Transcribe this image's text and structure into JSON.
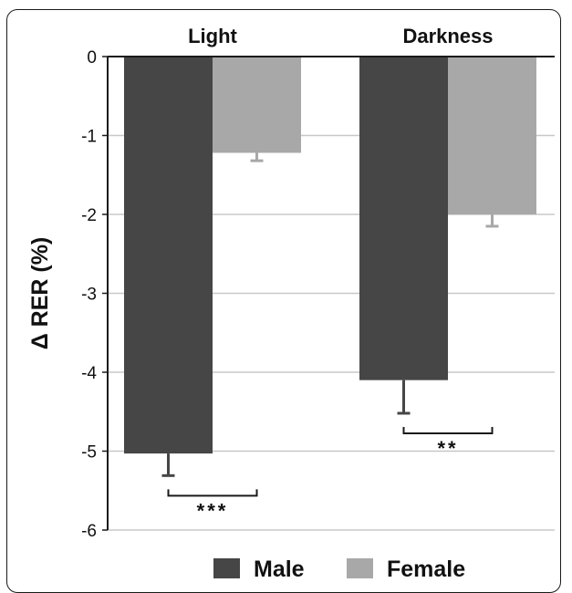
{
  "chart_data": {
    "type": "bar",
    "categories": [
      "Light",
      "Darkness"
    ],
    "series": [
      {
        "name": "Male",
        "values": [
          -5.03,
          -4.1
        ],
        "errors": [
          0.28,
          0.42
        ],
        "color": "#464646"
      },
      {
        "name": "Female",
        "values": [
          -1.22,
          -2.0
        ],
        "errors": [
          0.1,
          0.15
        ],
        "color": "#a8a8a8"
      }
    ],
    "ylabel": "Δ RER (%)",
    "ylim": [
      -6,
      0
    ],
    "yticks": [
      0,
      -1,
      -2,
      -3,
      -4,
      -5,
      -6
    ],
    "grid": true,
    "legend_position": "bottom",
    "significance": [
      {
        "category": "Light",
        "label": "***"
      },
      {
        "category": "Darkness",
        "label": "**"
      }
    ],
    "colors": {
      "axis": "#1a1a1a",
      "grid": "#c8c8c8",
      "error_bar": "#464646"
    }
  }
}
